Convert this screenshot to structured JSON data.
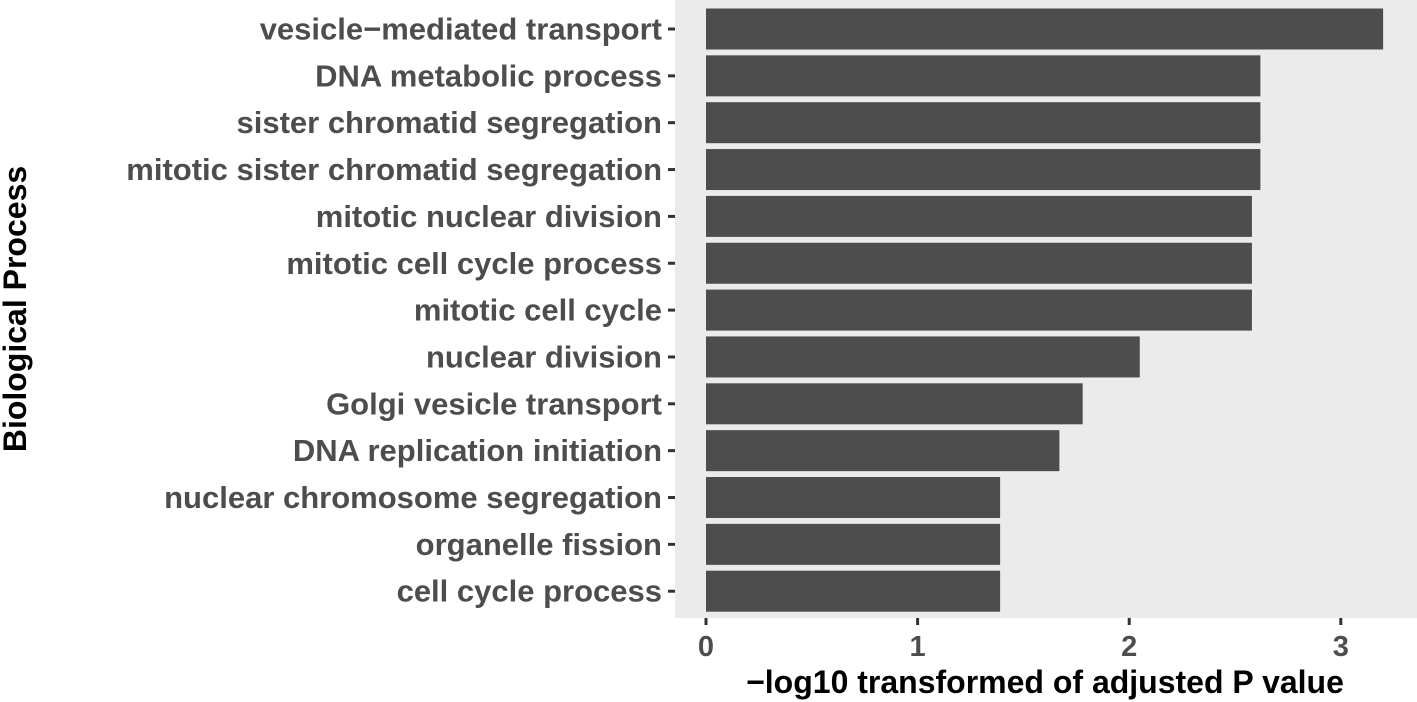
{
  "chart_data": {
    "type": "bar",
    "orientation": "horizontal",
    "categories": [
      "vesicle−mediated transport",
      "DNA metabolic process",
      "sister chromatid segregation",
      "mitotic sister chromatid segregation",
      "mitotic nuclear division",
      "mitotic cell cycle process",
      "mitotic cell cycle",
      "nuclear division",
      "Golgi vesicle transport",
      "DNA replication initiation",
      "nuclear chromosome segregation",
      "organelle fission",
      "cell cycle process"
    ],
    "values": [
      3.2,
      2.62,
      2.62,
      2.62,
      2.58,
      2.58,
      2.58,
      2.05,
      1.78,
      1.67,
      1.39,
      1.39,
      1.39
    ],
    "xlabel": "−log10 transformed of adjusted P value",
    "ylabel": "Biological Process",
    "xlim": [
      -0.05,
      3.3
    ],
    "xticks": [
      0,
      1,
      2,
      3
    ],
    "xtick_labels": [
      "0",
      "1",
      "2",
      "3"
    ],
    "grid": false,
    "legend": "none",
    "colors": {
      "bar": "#4d4d4d",
      "panel_background": "#ebebeb",
      "label_text": "#4d4d4d",
      "title_text": "#000000"
    }
  }
}
